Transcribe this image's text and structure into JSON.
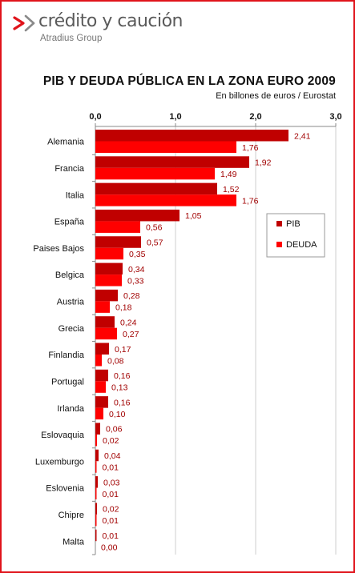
{
  "brand": {
    "name": "crédito y caución",
    "tagline": "Atradius Group",
    "colors": {
      "accent": "#e0141b",
      "text": "#5a5a5a"
    }
  },
  "chart_data": {
    "type": "bar",
    "orientation": "horizontal",
    "title": "PIB Y DEUDA PÚBLICA EN LA ZONA EURO 2009",
    "subtitle": "En billones de euros / Eurostat",
    "xlabel": "",
    "ylabel": "",
    "xlim": [
      0,
      3.0
    ],
    "ticks": [
      "0,0",
      "1,0",
      "2,0",
      "3,0"
    ],
    "tick_values": [
      0,
      1,
      2,
      3
    ],
    "grid": "vertical",
    "legend_position": "right-middle",
    "categories": [
      "Alemania",
      "Francia",
      "Italia",
      "España",
      "Paises Bajos",
      "Belgica",
      "Austria",
      "Grecia",
      "Finlandia",
      "Portugal",
      "Irlanda",
      "Eslovaquia",
      "Luxemburgo",
      "Eslovenia",
      "Chipre",
      "Malta"
    ],
    "series": [
      {
        "name": "PIB",
        "color": "#c00000",
        "values": [
          2.41,
          1.92,
          1.52,
          1.05,
          0.57,
          0.34,
          0.28,
          0.24,
          0.17,
          0.16,
          0.16,
          0.06,
          0.04,
          0.03,
          0.02,
          0.01
        ],
        "labels": [
          "2,41",
          "1,92",
          "1,52",
          "1,05",
          "0,57",
          "0,34",
          "0,28",
          "0,24",
          "0,17",
          "0,16",
          "0,16",
          "0,06",
          "0,04",
          "0,03",
          "0,02",
          "0,01"
        ]
      },
      {
        "name": "DEUDA",
        "color": "#ff0000",
        "values": [
          1.76,
          1.49,
          1.76,
          0.56,
          0.35,
          0.33,
          0.18,
          0.27,
          0.08,
          0.13,
          0.1,
          0.02,
          0.01,
          0.01,
          0.01,
          0.0
        ],
        "labels": [
          "1,76",
          "1,49",
          "1,76",
          "0,56",
          "0,35",
          "0,33",
          "0,18",
          "0,27",
          "0,08",
          "0,13",
          "0,10",
          "0,02",
          "0,01",
          "0,01",
          "0,01",
          "0,00"
        ]
      }
    ]
  }
}
